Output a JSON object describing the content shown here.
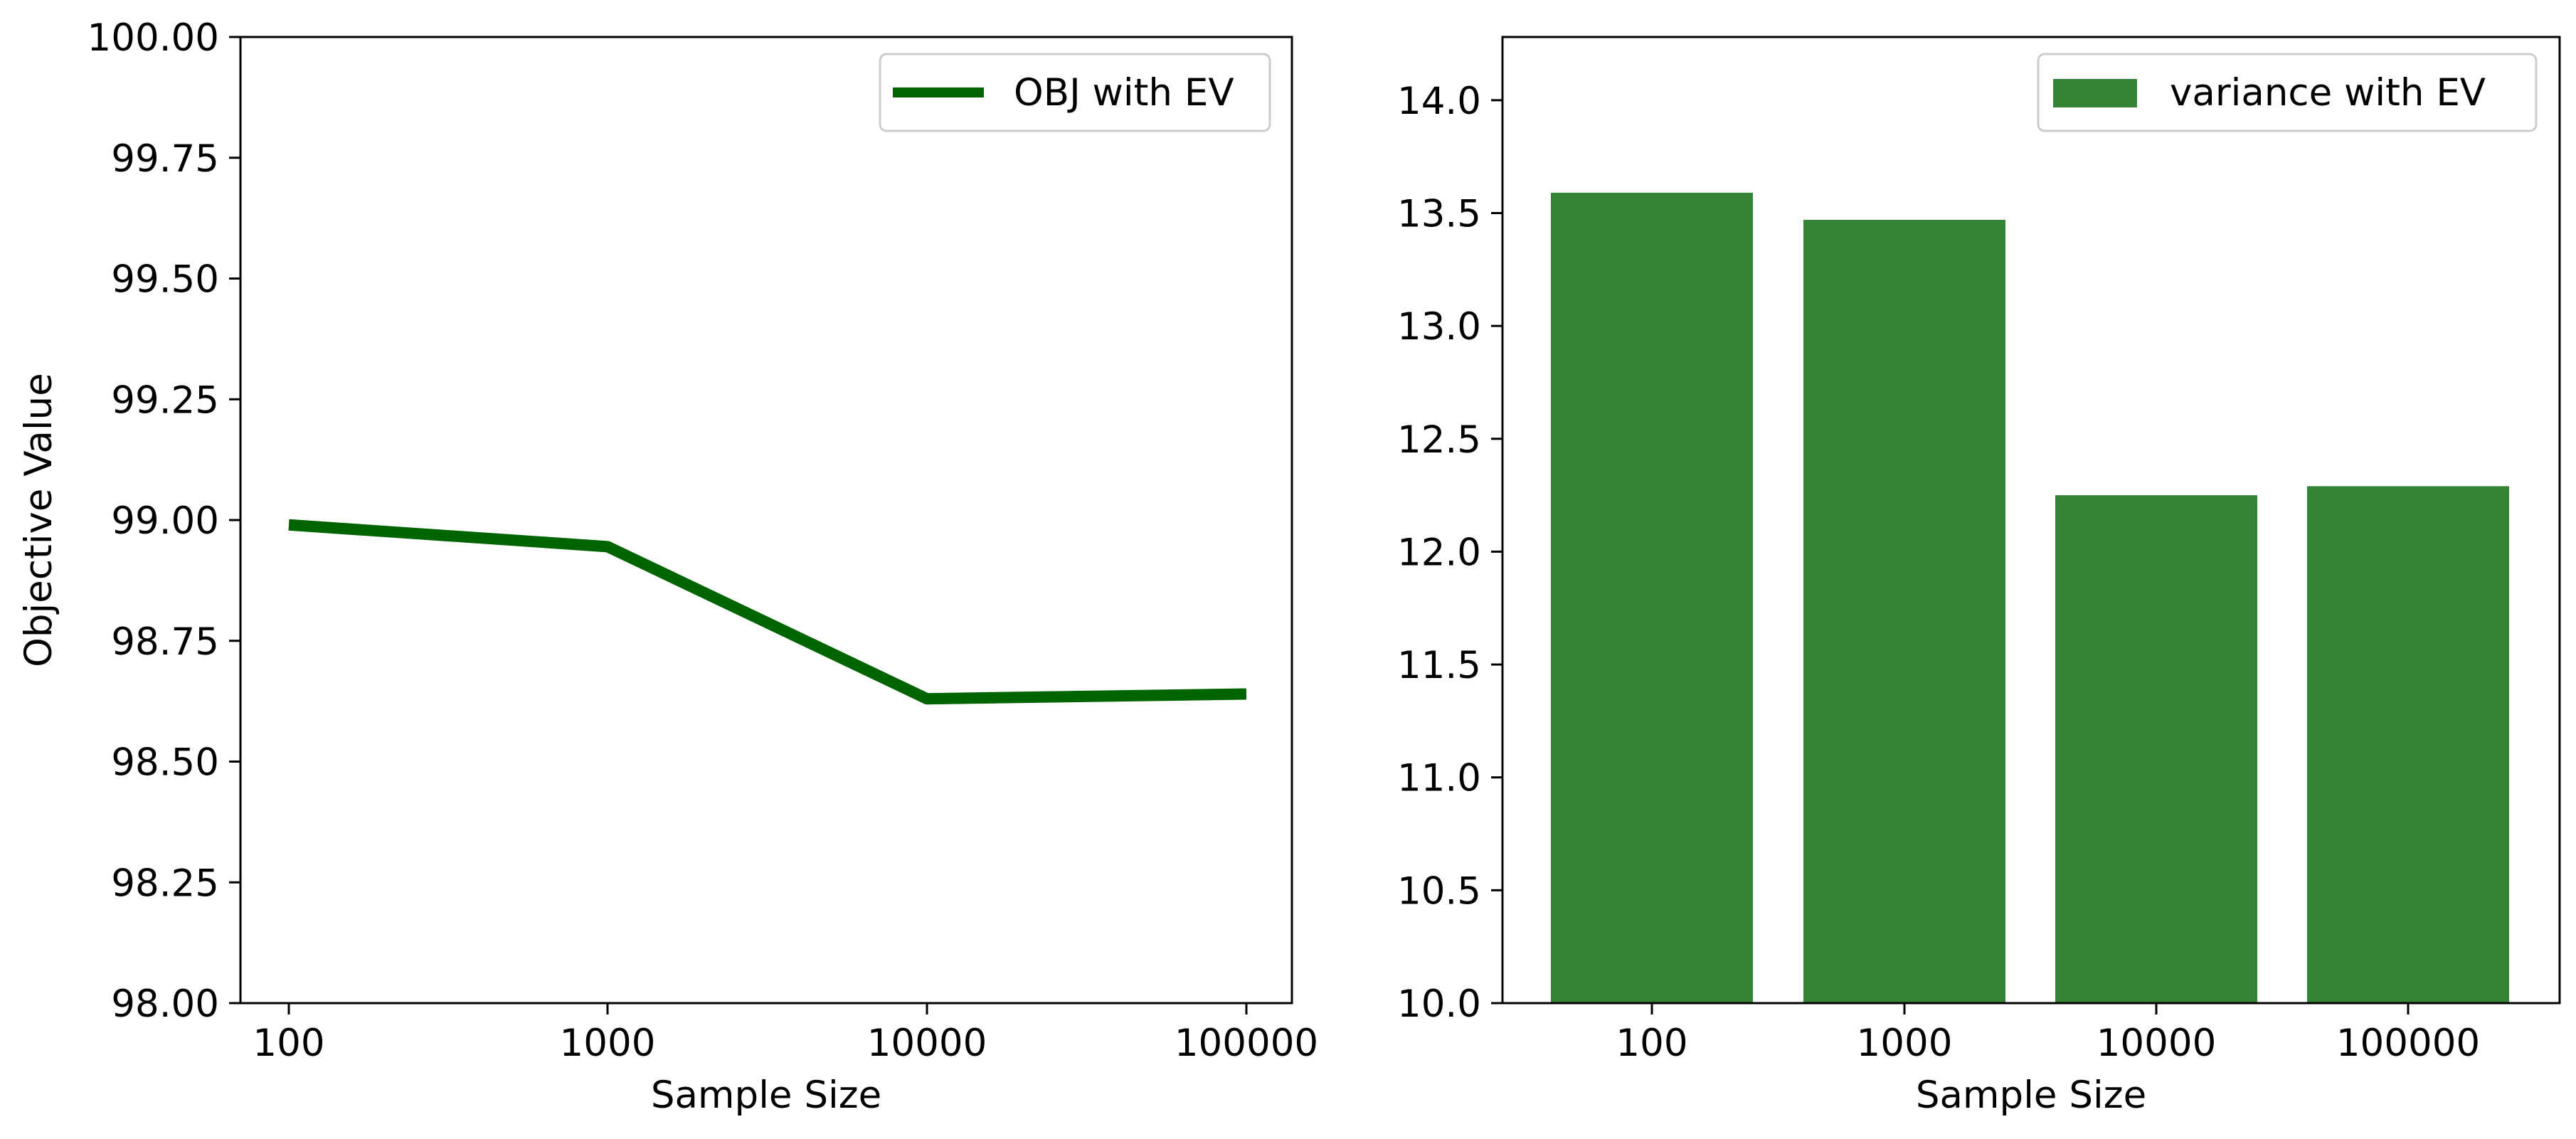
{
  "colors": {
    "line": "#006400",
    "bar": "#358334",
    "axis": "#000000",
    "legend_border": "#cccccc",
    "background": "#ffffff"
  },
  "chart_data": [
    {
      "type": "line",
      "categories": [
        "100",
        "1000",
        "10000",
        "100000"
      ],
      "series": [
        {
          "name": "OBJ with EV",
          "values": [
            98.99,
            98.945,
            98.63,
            98.64
          ]
        }
      ],
      "xlabel": "Sample Size",
      "ylabel": "Objective Value",
      "ylim": [
        98.0,
        100.0
      ],
      "yticks": [
        "98.00",
        "98.25",
        "98.50",
        "98.75",
        "99.00",
        "99.25",
        "99.50",
        "99.75",
        "100.00"
      ],
      "grid": false,
      "legend_position": "upper right"
    },
    {
      "type": "bar",
      "categories": [
        "100",
        "1000",
        "10000",
        "100000"
      ],
      "series": [
        {
          "name": "variance with EV",
          "values": [
            13.59,
            13.47,
            12.25,
            12.29
          ]
        }
      ],
      "xlabel": "Sample Size",
      "ylabel": "",
      "ylim": [
        10.0,
        14.28
      ],
      "yticks": [
        "10.0",
        "10.5",
        "11.0",
        "11.5",
        "12.0",
        "12.5",
        "13.0",
        "13.5",
        "14.0"
      ],
      "grid": false,
      "legend_position": "upper right"
    }
  ]
}
